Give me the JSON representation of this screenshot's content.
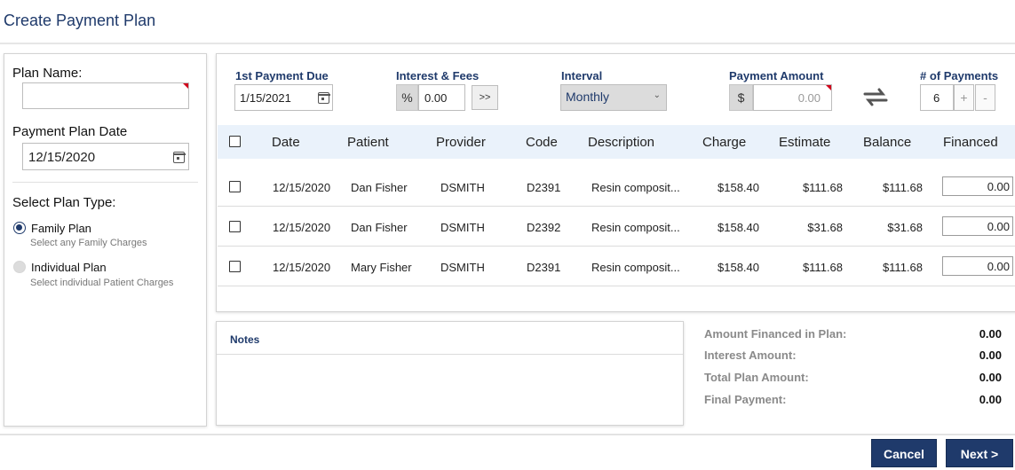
{
  "header": {
    "title": "Create Payment Plan"
  },
  "left": {
    "plan_name_label": "Plan Name:",
    "plan_name_value": "",
    "plan_date_label": "Payment Plan Date",
    "plan_date_value": "12/15/2020",
    "plan_type_label": "Select Plan Type:",
    "options": [
      {
        "title": "Family Plan",
        "subtitle": "Select any Family Charges",
        "selected": true
      },
      {
        "title": "Individual Plan",
        "subtitle": "Select individual Patient Charges",
        "selected": false
      }
    ]
  },
  "controls": {
    "first_payment_label": "1st Payment Due",
    "first_payment_value": "1/15/2021",
    "interest_label": "Interest & Fees",
    "interest_prefix": "%",
    "interest_value": "0.00",
    "interest_button": ">>",
    "interval_label": "Interval",
    "interval_value": "Monthly",
    "payment_amount_label": "Payment Amount",
    "payment_prefix": "$",
    "payment_amount_placeholder": "0.00",
    "num_payments_label": "# of Payments",
    "num_payments_value": "6",
    "plus": "+",
    "minus": "-"
  },
  "table": {
    "headers": [
      "Date",
      "Patient",
      "Provider",
      "Code",
      "Description",
      "Charge",
      "Estimate",
      "Balance",
      "Financed"
    ],
    "rows": [
      {
        "date": "12/15/2020",
        "patient": "Dan Fisher",
        "provider": "DSMITH",
        "code": "D2391",
        "description": "Resin composit...",
        "charge": "$158.40",
        "estimate": "$111.68",
        "balance": "$111.68",
        "financed": "0.00"
      },
      {
        "date": "12/15/2020",
        "patient": "Dan Fisher",
        "provider": "DSMITH",
        "code": "D2392",
        "description": "Resin composit...",
        "charge": "$158.40",
        "estimate": "$31.68",
        "balance": "$31.68",
        "financed": "0.00"
      },
      {
        "date": "12/15/2020",
        "patient": "Mary Fisher",
        "provider": "DSMITH",
        "code": "D2391",
        "description": "Resin composit...",
        "charge": "$158.40",
        "estimate": "$111.68",
        "balance": "$111.68",
        "financed": "0.00"
      }
    ]
  },
  "notes": {
    "title": "Notes",
    "value": ""
  },
  "summary": [
    {
      "label": "Amount Financed in Plan:",
      "value": "0.00"
    },
    {
      "label": "Interest Amount:",
      "value": "0.00"
    },
    {
      "label": "Total Plan Amount:",
      "value": "0.00"
    },
    {
      "label": "Final Payment:",
      "value": "0.00"
    }
  ],
  "buttons": {
    "cancel": "Cancel",
    "next": "Next >"
  },
  "colors": {
    "primary": "#1f3a6b",
    "header_bg": "#eaf2fb",
    "required_marker": "#d0021b"
  }
}
